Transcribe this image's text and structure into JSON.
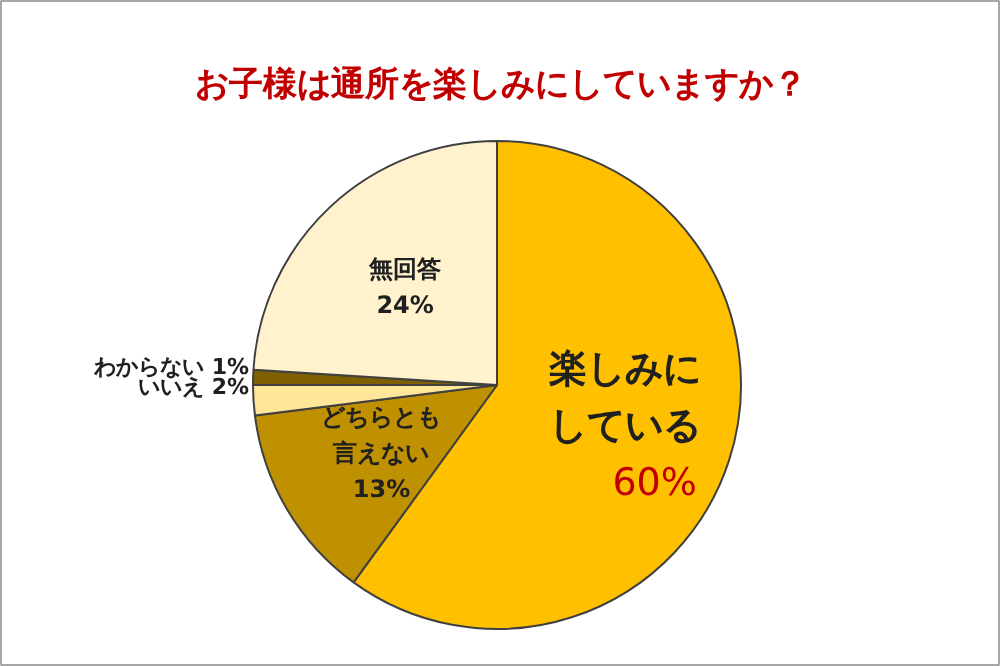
{
  "chart_data": {
    "type": "pie",
    "title": "お子様は通所を楽しみにしていますか？",
    "categories": [
      "楽しみにしている",
      "どちらとも言えない",
      "いいえ",
      "わからない",
      "無回答"
    ],
    "values": [
      60,
      13,
      2,
      1,
      24
    ],
    "colors": [
      "#ffc000",
      "#bf9000",
      "#ffe699",
      "#7f6000",
      "#fff2cc"
    ],
    "value_labels": [
      "60%",
      "13%",
      "2%",
      "1%",
      "24%"
    ]
  }
}
